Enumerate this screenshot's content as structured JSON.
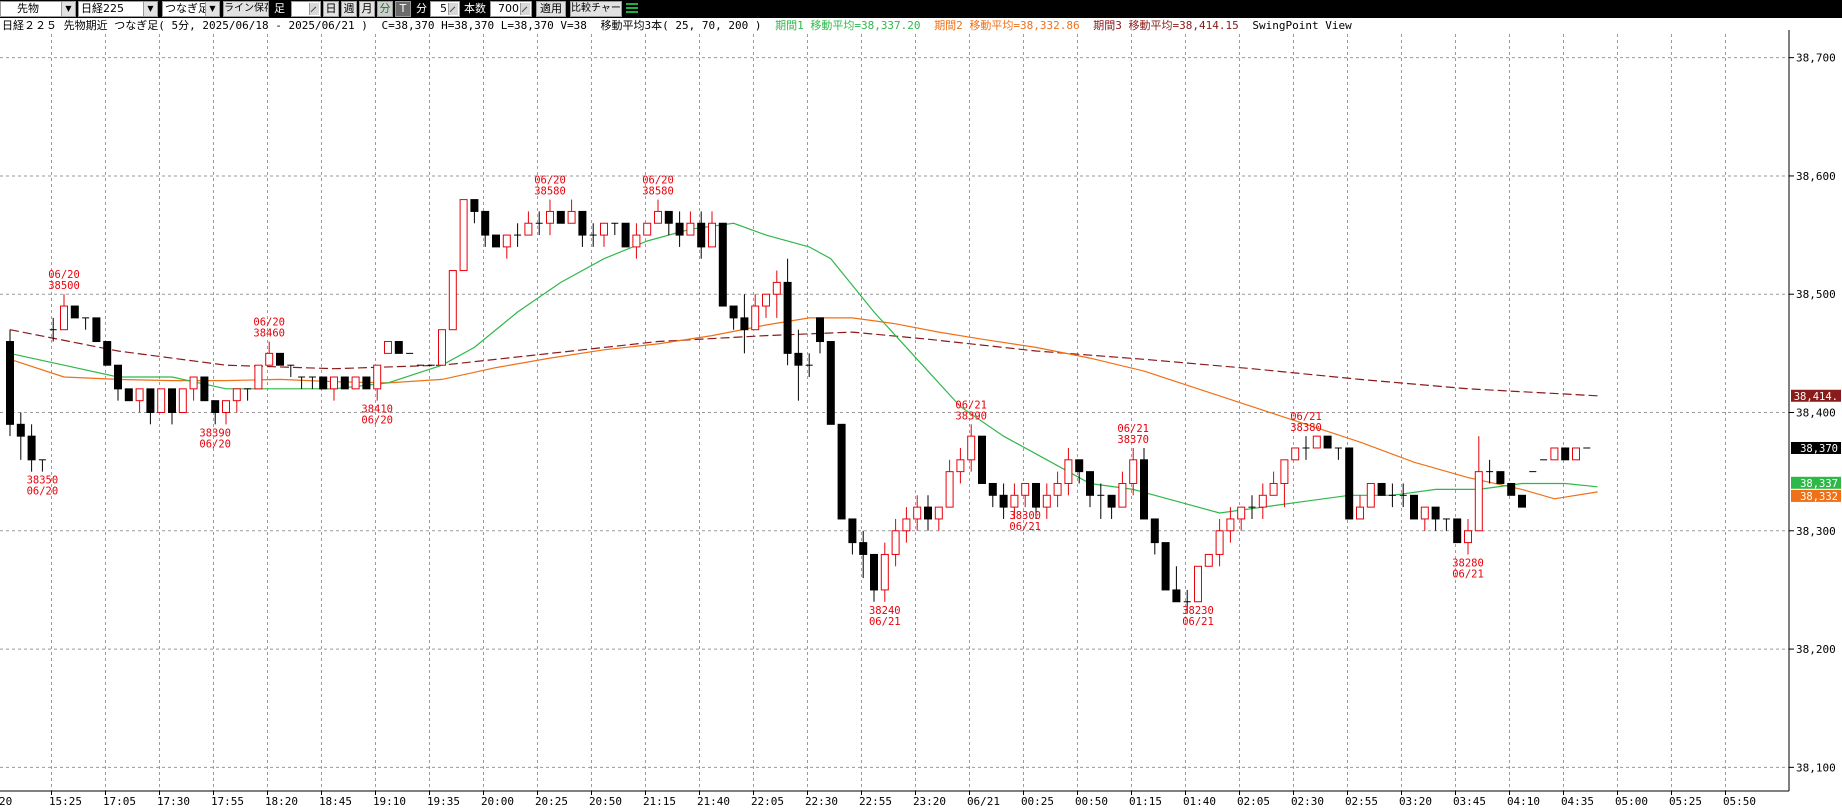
{
  "colors": {
    "up": "#e8000b",
    "down": "#000000",
    "ma1": "#2fb84a",
    "ma2": "#f07018",
    "ma3": "#8b1a1a",
    "grid": "#9a9a9a",
    "swing": "#e8000b"
  },
  "toolbar": {
    "market_select": "先物",
    "index_select": "日経225",
    "type_select": "つなぎ足",
    "save_line_button": "ライン保存",
    "ashi_label": "足",
    "period_buttons": [
      "日",
      "週",
      "月",
      "分",
      "T"
    ],
    "active_period": "分",
    "minute_label": "分",
    "minute_value": "5",
    "count_label": "本数",
    "count_value": "700",
    "apply_button": "適用",
    "compare_button": "比較チャート"
  },
  "header": {
    "title": "日経２２５ 先物期近 つなぎ足( 5分, 2025/06/18 - 2025/06/21 )",
    "ohlcv": "C=38,370 H=38,370 L=38,370 V=38",
    "ma_title": "移動平均3本( 25, 70, 200 )",
    "ma1_text": "期間1 移動平均=38,337.20",
    "ma2_text": "期間2 移動平均=38,332.86",
    "ma3_text": "期間3 移動平均=38,414.15",
    "view_label": "SwingPoint View"
  },
  "chart_data": {
    "type": "candlestick",
    "title": "日経２２５ 先物期近 つなぎ足( 5分, 2025/06/18 - 2025/06/21 )",
    "ylim": [
      38080,
      38720
    ],
    "y_ticks": [
      38100,
      38200,
      38300,
      38400,
      38500,
      38600,
      38700
    ],
    "y_tick_labels": [
      "38,100",
      "38,200",
      "38,300",
      "38,400",
      "38,500",
      "38,600",
      "38,700"
    ],
    "x_tick_labels": [
      "15:25",
      "17:05",
      "17:30",
      "17:55",
      "18:20",
      "18:45",
      "19:10",
      "19:35",
      "20:00",
      "20:25",
      "20:50",
      "21:15",
      "21:40",
      "22:05",
      "22:30",
      "22:55",
      "23:20",
      "06/21",
      "00:25",
      "00:50",
      "01:15",
      "01:40",
      "02:05",
      "02:30",
      "02:55",
      "03:20",
      "03:45",
      "04:10",
      "04:35",
      "05:00",
      "05:25",
      "05:50"
    ],
    "x_first_label_partial": "20",
    "candles": [
      [
        38460,
        38470,
        38380,
        38390
      ],
      [
        38390,
        38400,
        38360,
        38380
      ],
      [
        38380,
        38390,
        38350,
        38360
      ],
      [
        38360,
        38360,
        38350,
        38360
      ],
      [
        38470,
        38480,
        38460,
        38470
      ],
      [
        38470,
        38500,
        38470,
        38490
      ],
      [
        38490,
        38490,
        38480,
        38480
      ],
      [
        38480,
        38480,
        38470,
        38480
      ],
      [
        38480,
        38480,
        38460,
        38460
      ],
      [
        38460,
        38460,
        38440,
        38440
      ],
      [
        38440,
        38440,
        38410,
        38420
      ],
      [
        38420,
        38420,
        38410,
        38410
      ],
      [
        38410,
        38420,
        38400,
        38420
      ],
      [
        38420,
        38420,
        38390,
        38400
      ],
      [
        38400,
        38420,
        38400,
        38420
      ],
      [
        38420,
        38420,
        38390,
        38400
      ],
      [
        38400,
        38420,
        38400,
        38420
      ],
      [
        38420,
        38430,
        38410,
        38430
      ],
      [
        38430,
        38430,
        38410,
        38410
      ],
      [
        38410,
        38410,
        38390,
        38400
      ],
      [
        38400,
        38410,
        38390,
        38410
      ],
      [
        38410,
        38420,
        38400,
        38420
      ],
      [
        38420,
        38420,
        38410,
        38420
      ],
      [
        38420,
        38440,
        38420,
        38440
      ],
      [
        38440,
        38460,
        38440,
        38450
      ],
      [
        38450,
        38450,
        38440,
        38440
      ],
      [
        38440,
        38440,
        38430,
        38440
      ],
      [
        38430,
        38430,
        38420,
        38430
      ],
      [
        38430,
        38430,
        38420,
        38430
      ],
      [
        38430,
        38430,
        38420,
        38420
      ],
      [
        38420,
        38430,
        38410,
        38430
      ],
      [
        38430,
        38430,
        38420,
        38420
      ],
      [
        38420,
        38430,
        38420,
        38430
      ],
      [
        38430,
        38430,
        38420,
        38420
      ],
      [
        38420,
        38440,
        38410,
        38440
      ],
      [
        38450,
        38460,
        38450,
        38460
      ],
      [
        38460,
        38460,
        38450,
        38450
      ],
      [
        38450,
        38450,
        38450,
        38450
      ],
      [
        38440,
        38440,
        38440,
        38440
      ],
      [
        38440,
        38440,
        38440,
        38440
      ],
      [
        38440,
        38470,
        38440,
        38470
      ],
      [
        38470,
        38520,
        38470,
        38520
      ],
      [
        38520,
        38580,
        38520,
        38580
      ],
      [
        38580,
        38580,
        38560,
        38570
      ],
      [
        38570,
        38570,
        38540,
        38550
      ],
      [
        38550,
        38550,
        38540,
        38540
      ],
      [
        38540,
        38550,
        38530,
        38550
      ],
      [
        38550,
        38560,
        38540,
        38550
      ],
      [
        38550,
        38570,
        38550,
        38560
      ],
      [
        38560,
        38570,
        38550,
        38560
      ],
      [
        38560,
        38580,
        38550,
        38570
      ],
      [
        38570,
        38570,
        38560,
        38560
      ],
      [
        38560,
        38580,
        38560,
        38570
      ],
      [
        38570,
        38570,
        38540,
        38550
      ],
      [
        38550,
        38560,
        38540,
        38550
      ],
      [
        38550,
        38560,
        38540,
        38560
      ],
      [
        38560,
        38560,
        38550,
        38560
      ],
      [
        38560,
        38560,
        38540,
        38540
      ],
      [
        38540,
        38560,
        38530,
        38550
      ],
      [
        38550,
        38560,
        38550,
        38560
      ],
      [
        38560,
        38580,
        38560,
        38570
      ],
      [
        38570,
        38570,
        38550,
        38560
      ],
      [
        38560,
        38570,
        38540,
        38550
      ],
      [
        38550,
        38570,
        38550,
        38560
      ],
      [
        38560,
        38570,
        38530,
        38540
      ],
      [
        38540,
        38570,
        38540,
        38560
      ],
      [
        38560,
        38560,
        38490,
        38490
      ],
      [
        38490,
        38490,
        38470,
        38480
      ],
      [
        38480,
        38500,
        38450,
        38470
      ],
      [
        38470,
        38500,
        38470,
        38490
      ],
      [
        38490,
        38500,
        38480,
        38500
      ],
      [
        38500,
        38520,
        38480,
        38510
      ],
      [
        38510,
        38530,
        38440,
        38450
      ],
      [
        38450,
        38470,
        38410,
        38440
      ],
      [
        38440,
        38450,
        38430,
        38440
      ],
      [
        38480,
        38480,
        38450,
        38460
      ],
      [
        38460,
        38460,
        38390,
        38390
      ],
      [
        38390,
        38390,
        38310,
        38310
      ],
      [
        38310,
        38310,
        38280,
        38290
      ],
      [
        38290,
        38300,
        38260,
        38280
      ],
      [
        38280,
        38280,
        38240,
        38250
      ],
      [
        38250,
        38290,
        38240,
        38280
      ],
      [
        38280,
        38310,
        38270,
        38300
      ],
      [
        38300,
        38320,
        38290,
        38310
      ],
      [
        38310,
        38330,
        38300,
        38320
      ],
      [
        38320,
        38330,
        38300,
        38310
      ],
      [
        38310,
        38320,
        38300,
        38320
      ],
      [
        38320,
        38360,
        38320,
        38350
      ],
      [
        38350,
        38370,
        38340,
        38360
      ],
      [
        38360,
        38390,
        38350,
        38380
      ],
      [
        38380,
        38380,
        38340,
        38340
      ],
      [
        38340,
        38340,
        38320,
        38330
      ],
      [
        38330,
        38340,
        38310,
        38320
      ],
      [
        38320,
        38340,
        38310,
        38330
      ],
      [
        38330,
        38340,
        38320,
        38340
      ],
      [
        38340,
        38340,
        38310,
        38320
      ],
      [
        38320,
        38340,
        38310,
        38330
      ],
      [
        38330,
        38350,
        38320,
        38340
      ],
      [
        38340,
        38370,
        38330,
        38360
      ],
      [
        38360,
        38360,
        38340,
        38350
      ],
      [
        38350,
        38350,
        38320,
        38330
      ],
      [
        38330,
        38340,
        38310,
        38330
      ],
      [
        38330,
        38330,
        38310,
        38320
      ],
      [
        38320,
        38350,
        38320,
        38340
      ],
      [
        38340,
        38370,
        38330,
        38360
      ],
      [
        38360,
        38370,
        38310,
        38310
      ],
      [
        38310,
        38310,
        38280,
        38290
      ],
      [
        38290,
        38290,
        38250,
        38250
      ],
      [
        38250,
        38270,
        38240,
        38240
      ],
      [
        38240,
        38250,
        38230,
        38240
      ],
      [
        38240,
        38270,
        38240,
        38270
      ],
      [
        38270,
        38280,
        38270,
        38280
      ],
      [
        38280,
        38310,
        38270,
        38300
      ],
      [
        38300,
        38320,
        38290,
        38310
      ],
      [
        38310,
        38320,
        38300,
        38320
      ],
      [
        38320,
        38330,
        38310,
        38320
      ],
      [
        38320,
        38340,
        38310,
        38330
      ],
      [
        38330,
        38350,
        38330,
        38340
      ],
      [
        38340,
        38360,
        38320,
        38360
      ],
      [
        38360,
        38370,
        38360,
        38370
      ],
      [
        38370,
        38380,
        38360,
        38370
      ],
      [
        38370,
        38380,
        38370,
        38380
      ],
      [
        38380,
        38380,
        38370,
        38370
      ],
      [
        38370,
        38370,
        38360,
        38370
      ],
      [
        38370,
        38370,
        38310,
        38310
      ],
      [
        38310,
        38330,
        38310,
        38320
      ],
      [
        38320,
        38340,
        38320,
        38340
      ],
      [
        38340,
        38340,
        38330,
        38330
      ],
      [
        38330,
        38340,
        38320,
        38330
      ],
      [
        38330,
        38340,
        38320,
        38330
      ],
      [
        38330,
        38330,
        38310,
        38310
      ],
      [
        38310,
        38320,
        38300,
        38320
      ],
      [
        38320,
        38320,
        38300,
        38310
      ],
      [
        38310,
        38310,
        38300,
        38310
      ],
      [
        38310,
        38310,
        38290,
        38290
      ],
      [
        38290,
        38310,
        38280,
        38300
      ],
      [
        38300,
        38380,
        38300,
        38350
      ],
      [
        38350,
        38360,
        38340,
        38350
      ],
      [
        38350,
        38350,
        38340,
        38340
      ],
      [
        38340,
        38340,
        38330,
        38330
      ],
      [
        38330,
        38330,
        38320,
        38320
      ],
      [
        38350,
        38350,
        38350,
        38350
      ],
      [
        38360,
        38360,
        38360,
        38360
      ],
      [
        38360,
        38370,
        38360,
        38370
      ],
      [
        38370,
        38370,
        38360,
        38360
      ],
      [
        38360,
        38370,
        38360,
        38370
      ],
      [
        38370,
        38370,
        38370,
        38370
      ]
    ],
    "ma1": {
      "name": "期間1",
      "period": 25,
      "last": 38337.2,
      "values": [
        [
          0,
          38450
        ],
        [
          5,
          38440
        ],
        [
          10,
          38430
        ],
        [
          15,
          38430
        ],
        [
          20,
          38420
        ],
        [
          25,
          38420
        ],
        [
          30,
          38420
        ],
        [
          35,
          38425
        ],
        [
          40,
          38440
        ],
        [
          43,
          38455
        ],
        [
          47,
          38485
        ],
        [
          51,
          38510
        ],
        [
          55,
          38530
        ],
        [
          59,
          38545
        ],
        [
          63,
          38555
        ],
        [
          67,
          38560
        ],
        [
          70,
          38550
        ],
        [
          74,
          38540
        ],
        [
          76,
          38530
        ],
        [
          80,
          38485
        ],
        [
          84,
          38445
        ],
        [
          88,
          38405
        ],
        [
          92,
          38380
        ],
        [
          96,
          38360
        ],
        [
          100,
          38340
        ],
        [
          104,
          38335
        ],
        [
          108,
          38325
        ],
        [
          112,
          38315
        ],
        [
          116,
          38320
        ],
        [
          120,
          38325
        ],
        [
          124,
          38330
        ],
        [
          128,
          38330
        ],
        [
          132,
          38335
        ],
        [
          136,
          38335
        ],
        [
          140,
          38340
        ],
        [
          144,
          38340
        ],
        [
          147,
          38337.2
        ]
      ]
    },
    "ma2": {
      "name": "期間2",
      "period": 70,
      "last": 38332.86,
      "values": [
        [
          0,
          38445
        ],
        [
          5,
          38430
        ],
        [
          10,
          38428
        ],
        [
          15,
          38427
        ],
        [
          20,
          38427
        ],
        [
          25,
          38428
        ],
        [
          30,
          38426
        ],
        [
          35,
          38425
        ],
        [
          40,
          38428
        ],
        [
          45,
          38438
        ],
        [
          50,
          38446
        ],
        [
          55,
          38453
        ],
        [
          60,
          38458
        ],
        [
          65,
          38465
        ],
        [
          70,
          38474
        ],
        [
          74,
          38480
        ],
        [
          78,
          38480
        ],
        [
          82,
          38475
        ],
        [
          86,
          38468
        ],
        [
          90,
          38462
        ],
        [
          95,
          38455
        ],
        [
          100,
          38446
        ],
        [
          105,
          38435
        ],
        [
          110,
          38420
        ],
        [
          115,
          38405
        ],
        [
          120,
          38390
        ],
        [
          125,
          38375
        ],
        [
          130,
          38358
        ],
        [
          135,
          38345
        ],
        [
          140,
          38335
        ],
        [
          143,
          38327
        ],
        [
          147,
          38332.86
        ]
      ]
    },
    "ma3": {
      "name": "期間3",
      "period": 200,
      "last": 38414.15,
      "values": [
        [
          0,
          38470
        ],
        [
          10,
          38452
        ],
        [
          20,
          38440
        ],
        [
          30,
          38437
        ],
        [
          40,
          38440
        ],
        [
          50,
          38450
        ],
        [
          60,
          38460
        ],
        [
          70,
          38465
        ],
        [
          78,
          38468
        ],
        [
          85,
          38462
        ],
        [
          95,
          38452
        ],
        [
          105,
          38445
        ],
        [
          115,
          38437
        ],
        [
          125,
          38428
        ],
        [
          135,
          38420
        ],
        [
          147,
          38414.15
        ]
      ]
    },
    "right_labels": [
      {
        "text": "38,414.",
        "value": 38414.15,
        "bg": "#8b1a1a",
        "fg": "#ffffff"
      },
      {
        "text": "38,370",
        "value": 38370,
        "bg": "#000000",
        "fg": "#ffffff"
      },
      {
        "text": "38,337",
        "value": 38337.2,
        "bg": "#2fb84a",
        "fg": "#ffffff"
      },
      {
        "text": "38,332",
        "value": 38332.86,
        "bg": "#f07018",
        "fg": "#ffffff"
      }
    ],
    "swing_points": [
      {
        "index": 3,
        "type": "low",
        "line1": "38350",
        "line2": "06/20"
      },
      {
        "index": 5,
        "type": "high",
        "line1": "06/20",
        "line2": "38500"
      },
      {
        "index": 19,
        "type": "low",
        "line1": "38390",
        "line2": "06/20"
      },
      {
        "index": 24,
        "type": "high",
        "line1": "06/20",
        "line2": "38460"
      },
      {
        "index": 34,
        "type": "low",
        "line1": "38410",
        "line2": "06/20"
      },
      {
        "index": 50,
        "type": "high",
        "line1": "06/20",
        "line2": "38580"
      },
      {
        "index": 60,
        "type": "high",
        "line1": "06/20",
        "line2": "38580"
      },
      {
        "index": 81,
        "type": "low",
        "line1": "38240",
        "line2": "06/21"
      },
      {
        "index": 89,
        "type": "high",
        "line1": "06/21",
        "line2": "38390"
      },
      {
        "index": 94,
        "type": "low",
        "line1": "38300",
        "line2": "06/21"
      },
      {
        "index": 104,
        "type": "high",
        "line1": "06/21",
        "line2": "38370"
      },
      {
        "index": 110,
        "type": "low",
        "line1": "38230",
        "line2": "06/21"
      },
      {
        "index": 120,
        "type": "high",
        "line1": "06/21",
        "line2": "38380"
      },
      {
        "index": 135,
        "type": "low",
        "line1": "38280",
        "line2": "06/21"
      }
    ]
  }
}
